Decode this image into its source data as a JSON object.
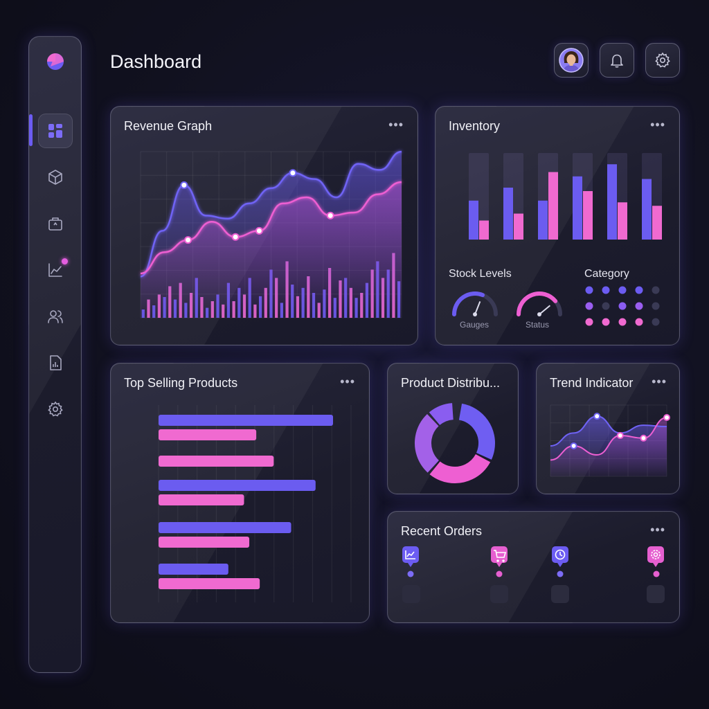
{
  "header": {
    "title": "Dashboard"
  },
  "topbar": {
    "avatar": "avatar",
    "notifications": "bell-icon",
    "settings": "gear-icon"
  },
  "sidebar": {
    "items": [
      {
        "icon": "dashboard-grid-icon",
        "active": true
      },
      {
        "icon": "box-icon"
      },
      {
        "icon": "briefcase-icon"
      },
      {
        "icon": "analytics-icon",
        "badge": true
      },
      {
        "icon": "users-icon"
      },
      {
        "icon": "report-icon"
      },
      {
        "icon": "gear-icon"
      }
    ]
  },
  "colors": {
    "accent": "#6c5cf2",
    "pink": "#f06ad0",
    "background": "#11111f"
  },
  "cards": {
    "revenue": {
      "title": "Revenue Graph",
      "menu": "•••"
    },
    "inventory": {
      "title": "Inventory",
      "menu": "•••",
      "stock_label": "Stock Levels",
      "category_label": "Category",
      "gauge1_label": "Gauges",
      "gauge2_label": "Status"
    },
    "top_selling": {
      "title": "Top Selling Products",
      "menu": "•••"
    },
    "distribution": {
      "title": "Product Distribu..."
    },
    "trend": {
      "title": "Trend Indicator",
      "menu": "•••"
    },
    "orders": {
      "title": "Recent Orders",
      "menu": "•••",
      "steps": [
        "analytics-icon",
        "cart-icon",
        "clock-icon",
        "gear-icon"
      ]
    }
  },
  "chart_data": [
    {
      "id": "revenue",
      "type": "line",
      "series": [
        {
          "values": [
            0.18,
            0.48,
            0.78,
            0.58,
            0.56,
            0.66,
            0.76,
            0.86,
            0.82,
            0.7,
            0.92,
            0.88,
            1.0
          ]
        },
        {
          "values": [
            0.2,
            0.34,
            0.42,
            0.54,
            0.44,
            0.48,
            0.66,
            0.7,
            0.58,
            0.6,
            0.72,
            0.8
          ]
        }
      ],
      "bars": [
        0.1,
        0.22,
        0.15,
        0.28,
        0.25,
        0.38,
        0.22,
        0.42,
        0.18,
        0.3,
        0.48,
        0.25,
        0.12,
        0.2,
        0.28,
        0.16,
        0.42,
        0.2,
        0.36,
        0.28,
        0.48,
        0.16,
        0.26,
        0.36,
        0.58,
        0.48,
        0.18,
        0.68,
        0.4,
        0.26,
        0.36,
        0.5,
        0.3,
        0.18,
        0.34,
        0.6,
        0.24,
        0.45,
        0.48,
        0.36,
        0.24,
        0.3,
        0.42,
        0.58,
        0.68,
        0.48,
        0.58,
        0.78,
        0.44
      ],
      "grid": true
    },
    {
      "id": "inventory",
      "type": "bar",
      "series": [
        {
          "values": [
            0.45,
            0.6,
            0.45,
            0.73,
            0.87,
            0.7
          ]
        },
        {
          "values": [
            0.22,
            0.3,
            0.78,
            0.56,
            0.43,
            0.39
          ]
        }
      ]
    },
    {
      "id": "stock_gauges",
      "type": "gauge",
      "values": [
        0.62,
        0.78
      ]
    },
    {
      "id": "category",
      "type": "dot-matrix",
      "rows": [
        [
          "#6c5cf2",
          "#6c5cf2",
          "#6c5cf2",
          "#6c5cf2",
          "#3a3a55"
        ],
        [
          "#9a5ef0",
          "#3a3a55",
          "#8a5cf2",
          "#9a5ef0",
          "#3a3a55"
        ],
        [
          "#f06ad0",
          "#f06ad0",
          "#f06ad0",
          "#f06ad0",
          "#3a3a55"
        ]
      ]
    },
    {
      "id": "top_selling",
      "type": "bar",
      "orientation": "horizontal",
      "values": [
        1.0,
        0.56,
        0.66,
        0.9,
        0.49,
        0.76,
        0.52,
        0.4,
        0.58
      ],
      "series_pattern": [
        "a",
        "b",
        "b",
        "a",
        "b",
        "a",
        "b",
        "a",
        "b"
      ]
    },
    {
      "id": "distribution",
      "type": "pie",
      "values": [
        0.33,
        0.29,
        0.27,
        0.11
      ]
    },
    {
      "id": "trend",
      "type": "line",
      "series": [
        {
          "values": [
            0.42,
            0.62,
            0.88,
            0.62,
            0.74,
            0.72
          ]
        },
        {
          "values": [
            0.2,
            0.42,
            0.28,
            0.58,
            0.54,
            0.86
          ]
        }
      ]
    }
  ]
}
